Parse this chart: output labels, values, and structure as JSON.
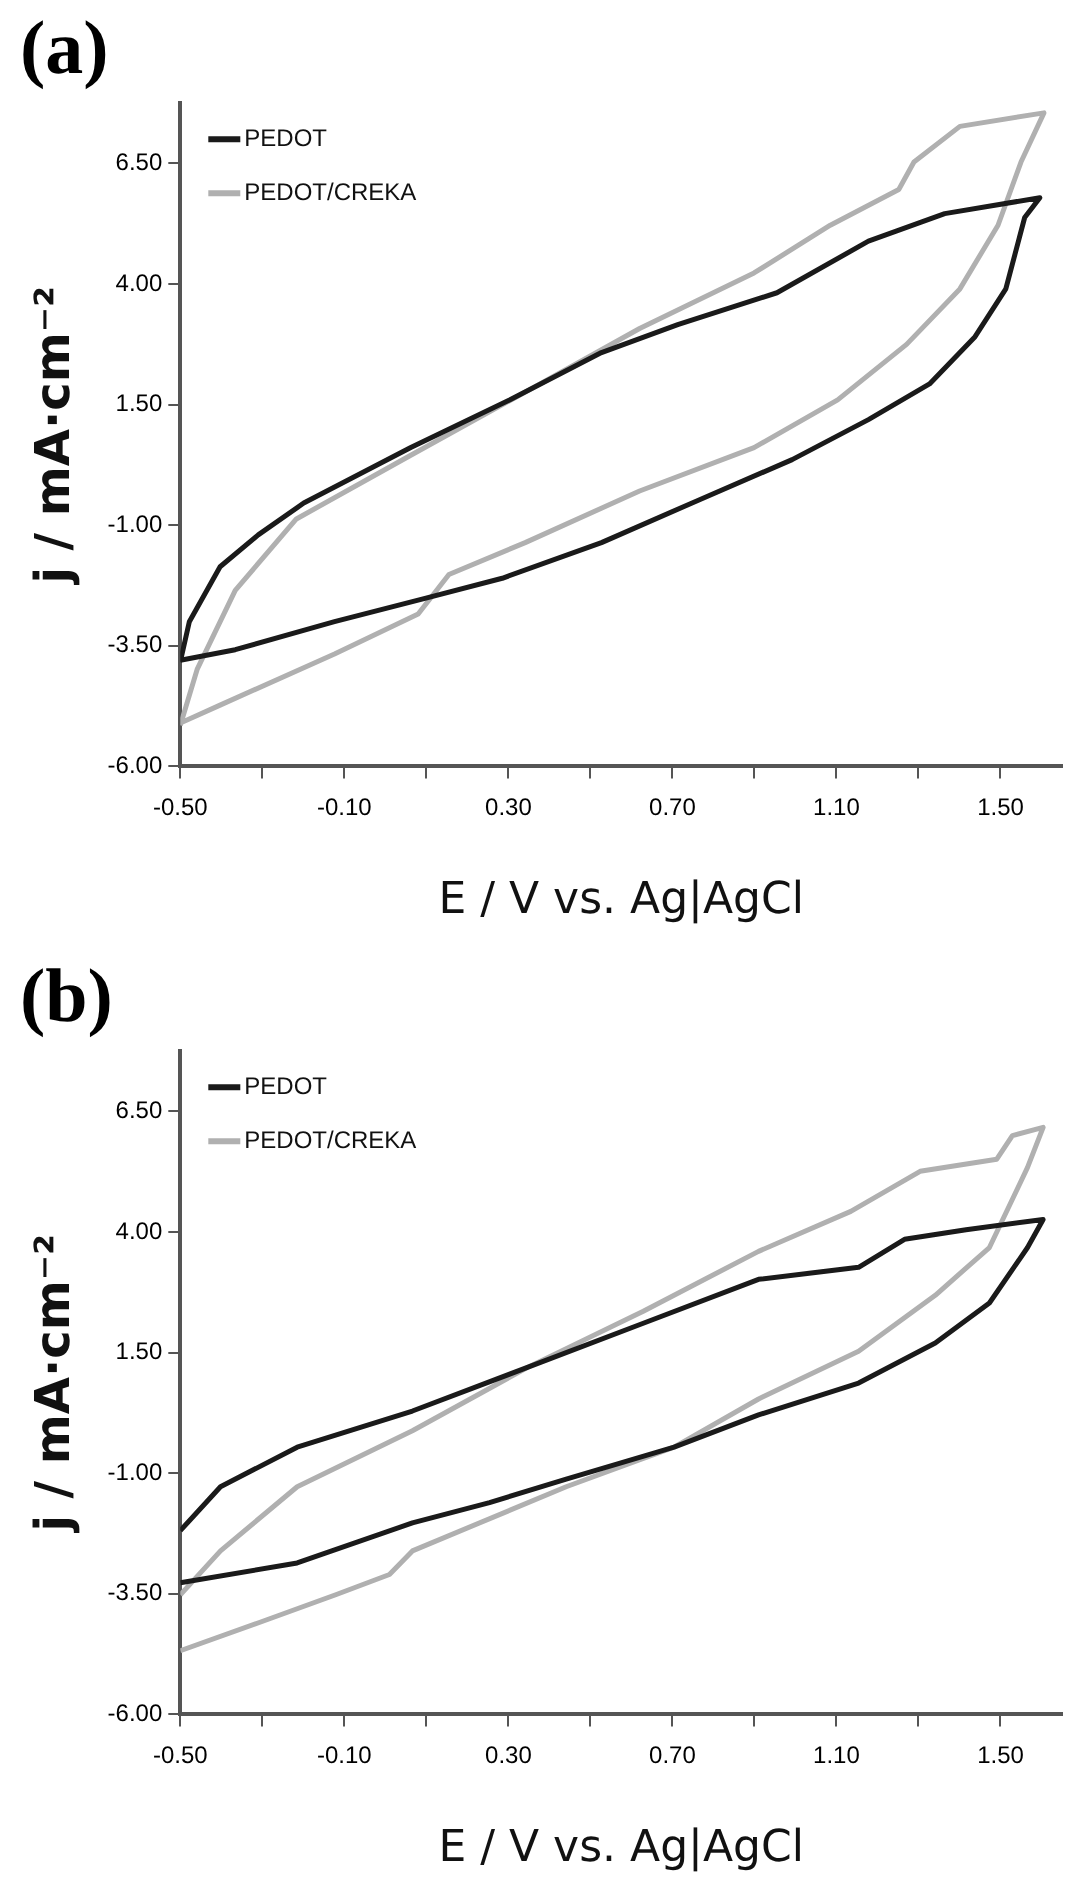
{
  "chart_data": [
    {
      "type": "line",
      "title": "(a)",
      "xlabel": "E / V vs. Ag|AgCl",
      "ylabel": "j / mA·cm⁻²",
      "legend": "top left",
      "marker": "none",
      "xlim": [
        -0.5,
        1.65
      ],
      "ylim": [
        -6,
        7.75
      ],
      "xticks": [
        {
          "value": -0.5,
          "label": "-0.50"
        },
        {
          "value": -0.3,
          "label": null
        },
        {
          "value": -0.1,
          "label": "-0.10"
        },
        {
          "value": 0.1,
          "label": null
        },
        {
          "value": 0.3,
          "label": "0.30"
        },
        {
          "value": 0.5,
          "label": null
        },
        {
          "value": 0.7,
          "label": "0.70"
        },
        {
          "value": 0.9,
          "label": null
        },
        {
          "value": 1.1,
          "label": "1.10"
        },
        {
          "value": 1.3,
          "label": null
        },
        {
          "value": 1.5,
          "label": "1.50"
        }
      ],
      "yticks": [
        {
          "value": -6,
          "label": "-6.00"
        },
        {
          "value": -3.5,
          "label": "-3.50"
        },
        {
          "value": -1,
          "label": "-1.00"
        },
        {
          "value": 1.5,
          "label": "1.50"
        },
        {
          "value": 4,
          "label": "4.00"
        },
        {
          "value": 6.5,
          "label": "6.50"
        }
      ],
      "series": [
        {
          "name": "PEDOT",
          "color": "#1a1a1a",
          "x": [
            -0.5,
            -0.478,
            -0.403,
            -0.31,
            -0.199,
            0.062,
            0.304,
            0.527,
            0.713,
            0.955,
            1.178,
            1.364,
            1.596,
            1.559,
            1.513,
            1.438,
            1.327,
            1.178,
            0.992,
            0.769,
            0.527,
            0.285,
            0.099,
            -0.124,
            -0.366,
            -0.5
          ],
          "values": [
            -3.83,
            -3.0,
            -1.86,
            -1.2,
            -0.54,
            0.61,
            1.6,
            2.58,
            3.16,
            3.82,
            4.89,
            5.46,
            5.79,
            5.38,
            3.9,
            2.91,
            1.93,
            1.19,
            0.36,
            -0.46,
            -1.36,
            -2.1,
            -2.51,
            -3.0,
            -3.58,
            -3.8
          ]
        },
        {
          "name": "PEDOT/CREKA",
          "color": "#b0b0b0",
          "x": [
            -0.5,
            -0.459,
            -0.366,
            -0.217,
            0.062,
            0.341,
            0.62,
            0.899,
            1.085,
            1.252,
            1.289,
            1.401,
            1.606,
            1.55,
            1.494,
            1.401,
            1.271,
            1.103,
            0.899,
            0.62,
            0.341,
            0.155,
            0.08,
            -0.124,
            -0.403,
            -0.5
          ],
          "values": [
            -5.15,
            -3.99,
            -2.35,
            -0.87,
            0.45,
            1.76,
            3.08,
            4.23,
            5.22,
            5.96,
            6.53,
            7.27,
            7.55,
            6.53,
            5.22,
            3.9,
            2.75,
            1.6,
            0.61,
            -0.29,
            -1.36,
            -2.02,
            -2.84,
            -3.67,
            -4.73,
            -5.1
          ]
        }
      ]
    },
    {
      "type": "line",
      "title": "(b)",
      "xlabel": "E / V vs. Ag|AgCl",
      "ylabel": "j / mA·cm⁻²",
      "legend": "top left",
      "marker": "none",
      "xlim": [
        -0.5,
        1.65
      ],
      "ylim": [
        -6,
        7.75
      ],
      "xticks": [
        {
          "value": -0.5,
          "label": "-0.50"
        },
        {
          "value": -0.3,
          "label": null
        },
        {
          "value": -0.1,
          "label": "-0.10"
        },
        {
          "value": 0.1,
          "label": null
        },
        {
          "value": 0.3,
          "label": "0.30"
        },
        {
          "value": 0.5,
          "label": null
        },
        {
          "value": 0.7,
          "label": "0.70"
        },
        {
          "value": 0.9,
          "label": null
        },
        {
          "value": 1.1,
          "label": "1.10"
        },
        {
          "value": 1.3,
          "label": null
        },
        {
          "value": 1.5,
          "label": "1.50"
        }
      ],
      "yticks": [
        {
          "value": -6,
          "label": "-6.00"
        },
        {
          "value": -3.5,
          "label": "-3.50"
        },
        {
          "value": -1,
          "label": "-1.00"
        },
        {
          "value": 1.5,
          "label": "1.50"
        },
        {
          "value": 4,
          "label": "4.00"
        },
        {
          "value": 6.5,
          "label": "6.50"
        }
      ],
      "series": [
        {
          "name": "PEDOT",
          "color": "#1a1a1a",
          "x": [
            -0.5,
            -0.402,
            -0.215,
            0.066,
            0.348,
            0.629,
            0.91,
            1.154,
            1.266,
            1.416,
            1.604,
            1.566,
            1.473,
            1.341,
            1.154,
            0.91,
            0.704,
            0.441,
            0.254,
            0.066,
            -0.215,
            -0.5
          ],
          "values": [
            -2.19,
            -1.28,
            -0.46,
            0.29,
            1.2,
            2.11,
            3.02,
            3.27,
            3.85,
            4.05,
            4.26,
            3.68,
            2.53,
            1.7,
            0.87,
            0.21,
            -0.46,
            -1.12,
            -1.61,
            -2.03,
            -2.86,
            -3.27
          ]
        },
        {
          "name": "PEDOT/CREKA",
          "color": "#b0b0b0",
          "x": [
            -0.5,
            -0.402,
            -0.215,
            0.066,
            0.348,
            0.629,
            0.91,
            1.135,
            1.304,
            1.491,
            1.529,
            1.604,
            1.566,
            1.473,
            1.341,
            1.154,
            0.91,
            0.704,
            0.441,
            0.066,
            0.01,
            -0.121,
            -0.309,
            -0.5
          ],
          "values": [
            -3.52,
            -2.61,
            -1.28,
            -0.12,
            1.2,
            2.36,
            3.6,
            4.43,
            5.26,
            5.51,
            6.0,
            6.17,
            5.34,
            3.68,
            2.69,
            1.53,
            0.54,
            -0.46,
            -1.28,
            -2.61,
            -3.1,
            -3.52,
            -4.1,
            -4.68
          ]
        }
      ]
    }
  ]
}
